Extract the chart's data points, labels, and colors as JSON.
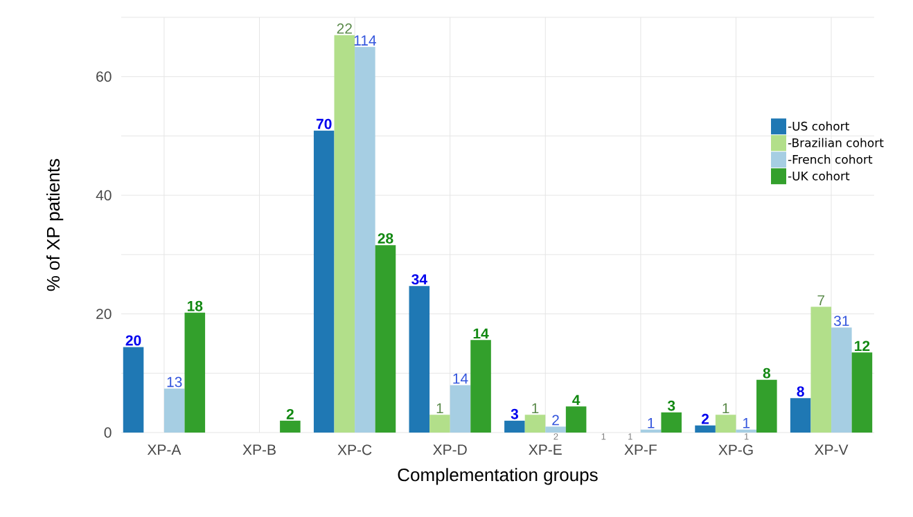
{
  "chart_data": {
    "type": "bar",
    "xlabel": "Complementation groups",
    "ylabel": "% of XP patients",
    "categories": [
      "XP-A",
      "XP-B",
      "XP-C",
      "XP-D",
      "XP-E",
      "XP-F",
      "XP-G",
      "XP-V"
    ],
    "series": [
      {
        "name": "-US cohort",
        "color": "#1f78b4",
        "values": [
          14.4,
          null,
          50.9,
          24.7,
          2.0,
          null,
          1.2,
          5.8
        ]
      },
      {
        "name": "-Brazilian cohort",
        "color": "#b2df8a",
        "values": [
          null,
          null,
          67.0,
          3.0,
          3.0,
          null,
          3.0,
          21.2
        ]
      },
      {
        "name": "-French cohort",
        "color": "#a6cee3",
        "values": [
          7.4,
          null,
          65.0,
          8.0,
          1.0,
          0.5,
          0.5,
          17.7
        ]
      },
      {
        "name": "-UK cohort",
        "color": "#33a02c",
        "values": [
          20.2,
          2.0,
          31.6,
          15.6,
          4.4,
          3.4,
          8.9,
          13.5
        ]
      }
    ],
    "ylim": [
      0,
      70
    ],
    "yticks": [
      0,
      {
        "value": 10,
        "label": null
      },
      20,
      {
        "value": 30,
        "label": null
      },
      40,
      {
        "value": 50,
        "label": null
      },
      60,
      {
        "value": 70,
        "label": null
      }
    ],
    "grid": true,
    "legend": "right",
    "annotations": [
      "20",
      "70",
      "34",
      "3",
      "2",
      "8",
      "22",
      "1",
      "1",
      "1",
      "7",
      "13",
      "114",
      "14",
      "2",
      "1",
      "1",
      "31",
      "18",
      "2",
      "28",
      "14",
      "4",
      "3",
      "8",
      "12",
      "2",
      "1",
      "1",
      "1"
    ]
  }
}
